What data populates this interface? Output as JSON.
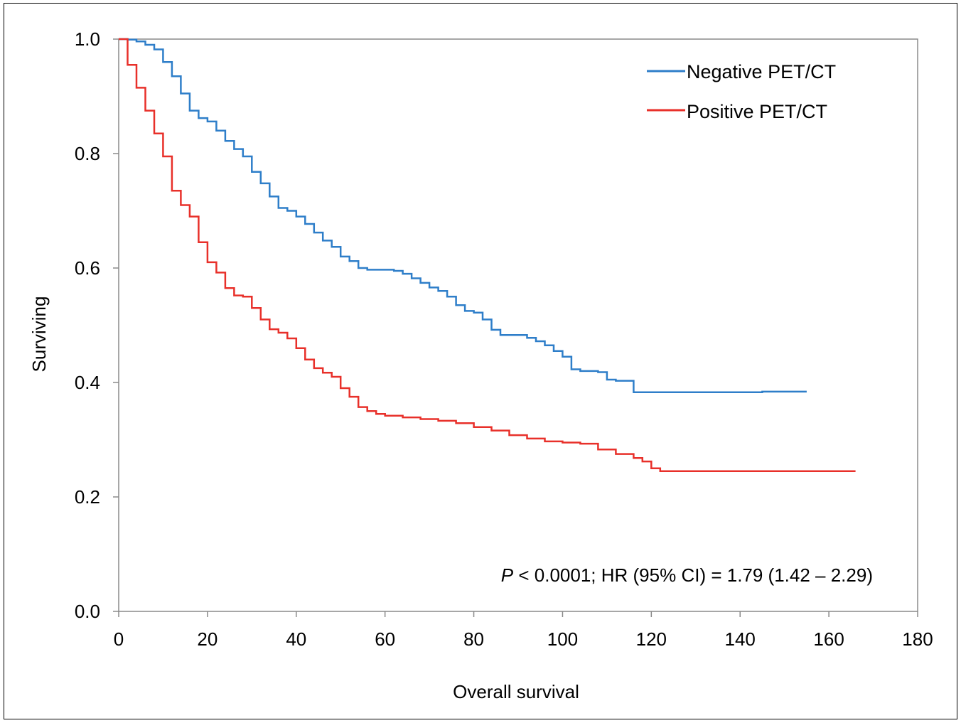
{
  "chart_data": {
    "type": "line",
    "title": "",
    "xlabel": "Overall survival",
    "ylabel": "Surviving",
    "xlim": [
      0,
      180
    ],
    "ylim": [
      0,
      1.0
    ],
    "xticks": [
      0,
      20,
      40,
      60,
      80,
      100,
      120,
      140,
      160,
      180
    ],
    "yticks": [
      "0.0",
      "0.2",
      "0.4",
      "0.6",
      "0.8",
      "1.0"
    ],
    "grid": false,
    "legend_position": "top-right",
    "annotation": {
      "p_symbol": "P",
      "text": " < 0.0001; HR (95% CI) = 1.79 (1.42 – 2.29)"
    },
    "series": [
      {
        "name": "Negative PET/CT",
        "color": "#2e7ec9",
        "x": [
          0,
          2,
          4,
          6,
          8,
          10,
          12,
          14,
          16,
          18,
          20,
          22,
          24,
          26,
          28,
          30,
          32,
          34,
          36,
          38,
          40,
          42,
          44,
          46,
          48,
          50,
          52,
          54,
          56,
          58,
          60,
          62,
          64,
          66,
          68,
          70,
          72,
          74,
          76,
          78,
          80,
          82,
          84,
          86,
          88,
          90,
          92,
          94,
          96,
          98,
          100,
          102,
          104,
          106,
          108,
          110,
          112,
          114,
          116,
          118,
          120,
          125,
          130,
          135,
          140,
          145,
          150,
          155
        ],
        "y": [
          1.0,
          0.999,
          0.996,
          0.99,
          0.982,
          0.96,
          0.935,
          0.905,
          0.875,
          0.862,
          0.856,
          0.84,
          0.822,
          0.808,
          0.795,
          0.768,
          0.748,
          0.725,
          0.705,
          0.7,
          0.69,
          0.677,
          0.662,
          0.648,
          0.637,
          0.62,
          0.612,
          0.6,
          0.597,
          0.597,
          0.597,
          0.595,
          0.59,
          0.582,
          0.574,
          0.566,
          0.56,
          0.55,
          0.535,
          0.525,
          0.522,
          0.51,
          0.492,
          0.483,
          0.483,
          0.483,
          0.478,
          0.472,
          0.465,
          0.455,
          0.445,
          0.423,
          0.42,
          0.42,
          0.418,
          0.405,
          0.403,
          0.403,
          0.383,
          0.383,
          0.383,
          0.383,
          0.383,
          0.383,
          0.383,
          0.384,
          0.384,
          0.384
        ]
      },
      {
        "name": "Positive PET/CT",
        "color": "#e8302a",
        "x": [
          0,
          2,
          4,
          6,
          8,
          10,
          12,
          14,
          16,
          18,
          20,
          22,
          24,
          26,
          28,
          30,
          32,
          34,
          36,
          38,
          40,
          42,
          44,
          46,
          48,
          50,
          52,
          54,
          56,
          58,
          60,
          64,
          68,
          72,
          76,
          80,
          84,
          88,
          92,
          96,
          100,
          104,
          108,
          112,
          116,
          118,
          120,
          122,
          130,
          140,
          150,
          160,
          166
        ],
        "y": [
          1.0,
          0.955,
          0.915,
          0.875,
          0.835,
          0.795,
          0.735,
          0.71,
          0.69,
          0.645,
          0.61,
          0.592,
          0.565,
          0.552,
          0.55,
          0.53,
          0.51,
          0.493,
          0.487,
          0.477,
          0.46,
          0.44,
          0.425,
          0.417,
          0.41,
          0.39,
          0.375,
          0.357,
          0.35,
          0.345,
          0.342,
          0.339,
          0.336,
          0.333,
          0.329,
          0.322,
          0.316,
          0.308,
          0.302,
          0.297,
          0.295,
          0.293,
          0.283,
          0.275,
          0.268,
          0.262,
          0.25,
          0.245,
          0.245,
          0.245,
          0.245,
          0.245,
          0.245
        ]
      }
    ]
  }
}
